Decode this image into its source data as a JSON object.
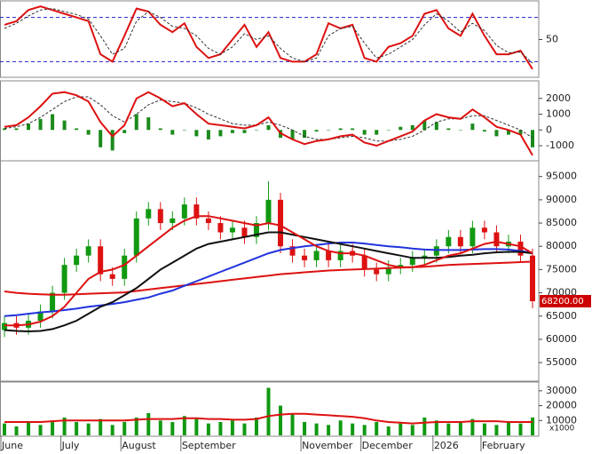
{
  "chart_data": [
    {
      "type": "line",
      "ylim": [
        0,
        100
      ],
      "yticks": [
        50
      ],
      "levels": [
        20,
        80
      ],
      "level_color": "#2222cc",
      "series": [
        {
          "color": "#dd1111",
          "width": 2,
          "values": [
            70,
            75,
            90,
            95,
            90,
            85,
            80,
            75,
            30,
            20,
            55,
            92,
            88,
            70,
            60,
            72,
            40,
            25,
            30,
            50,
            70,
            40,
            60,
            25,
            20,
            20,
            30,
            72,
            65,
            70,
            25,
            20,
            40,
            45,
            55,
            85,
            90,
            65,
            55,
            85,
            55,
            30,
            30,
            35,
            10
          ]
        },
        {
          "color": "#333333",
          "width": 1,
          "dash": true,
          "values": [
            65,
            72,
            82,
            90,
            92,
            88,
            84,
            78,
            55,
            30,
            38,
            75,
            88,
            80,
            68,
            65,
            55,
            38,
            30,
            40,
            58,
            50,
            55,
            38,
            25,
            20,
            25,
            55,
            65,
            68,
            45,
            25,
            30,
            40,
            50,
            70,
            85,
            75,
            60,
            72,
            62,
            42,
            32,
            33,
            18
          ]
        }
      ]
    },
    {
      "type": "line",
      "ylim": [
        -1900,
        3000
      ],
      "yticks": [
        2000,
        1000,
        0,
        -1000
      ],
      "series": [
        {
          "style": "bar",
          "color": "#1a8a1a",
          "values": [
            100,
            100,
            400,
            700,
            1000,
            600,
            100,
            -300,
            -1100,
            -1300,
            -200,
            1000,
            800,
            100,
            -300,
            0,
            -400,
            -600,
            -400,
            -200,
            -200,
            0,
            300,
            -500,
            -600,
            -500,
            -100,
            0,
            100,
            100,
            -300,
            -300,
            0,
            200,
            300,
            600,
            500,
            100,
            0,
            400,
            -100,
            -400,
            -300,
            -300,
            -1100
          ]
        },
        {
          "color": "#333333",
          "width": 1,
          "dash": true,
          "values": [
            100,
            200,
            400,
            800,
            1300,
            1800,
            2100,
            2100,
            1600,
            900,
            500,
            1000,
            1600,
            1900,
            1800,
            1700,
            1400,
            1000,
            700,
            400,
            300,
            300,
            500,
            300,
            0,
            -400,
            -600,
            -600,
            -500,
            -400,
            -500,
            -700,
            -700,
            -600,
            -400,
            0,
            500,
            700,
            700,
            900,
            900,
            600,
            300,
            0,
            -500
          ]
        },
        {
          "color": "#dd1111",
          "width": 2,
          "values": [
            200,
            300,
            800,
            1500,
            2300,
            2400,
            2200,
            1800,
            500,
            -400,
            300,
            2000,
            2400,
            2000,
            1500,
            1700,
            1000,
            400,
            300,
            200,
            100,
            300,
            800,
            -200,
            -600,
            -900,
            -700,
            -600,
            -400,
            -300,
            -800,
            -1000,
            -700,
            -400,
            -100,
            600,
            1000,
            800,
            700,
            1300,
            800,
            200,
            0,
            -300,
            -1600
          ]
        }
      ]
    },
    {
      "type": "candlestick",
      "ylim": [
        51200,
        98000
      ],
      "yticks": [
        95000,
        90000,
        85000,
        80000,
        75000,
        70000,
        65000,
        60000,
        55000
      ],
      "up_color": "#119911",
      "down_color": "#dd1111",
      "open": [
        62000,
        63500,
        62500,
        64000,
        66000,
        70000,
        76000,
        78000,
        80000,
        74000,
        73000,
        78000,
        86000,
        88000,
        85000,
        86000,
        89000,
        86000,
        85000,
        83000,
        84000,
        82000,
        85000,
        90000,
        80000,
        78000,
        77000,
        79000,
        77000,
        79000,
        78000,
        75000,
        74000,
        75500,
        76000,
        77500,
        78000,
        80000,
        82000,
        80000,
        84000,
        83000,
        80000,
        81000,
        78000
      ],
      "high": [
        65000,
        65000,
        65500,
        67500,
        71500,
        77500,
        79500,
        81500,
        81500,
        75500,
        79500,
        87500,
        89500,
        89500,
        87500,
        90500,
        90500,
        87500,
        86500,
        85500,
        85500,
        86500,
        94000,
        91500,
        81500,
        79500,
        80500,
        80500,
        80500,
        80500,
        79500,
        76500,
        77000,
        77500,
        79000,
        79500,
        81500,
        83500,
        83500,
        85500,
        85500,
        84500,
        82500,
        82500,
        79500
      ],
      "low": [
        60500,
        61000,
        61000,
        62500,
        64500,
        68500,
        74500,
        76500,
        72500,
        71500,
        71500,
        76500,
        84500,
        83500,
        83500,
        84500,
        84500,
        83500,
        81500,
        81500,
        80500,
        80500,
        83500,
        78500,
        76500,
        75500,
        75500,
        75500,
        75500,
        76500,
        73500,
        72500,
        72500,
        74000,
        74500,
        76000,
        76500,
        78500,
        78500,
        78500,
        81500,
        78500,
        78500,
        76500,
        66700
      ],
      "close": [
        63500,
        62500,
        64000,
        66000,
        70000,
        76000,
        78000,
        80000,
        74000,
        73000,
        78000,
        86000,
        88000,
        85000,
        86000,
        89000,
        86000,
        85000,
        83000,
        84000,
        82000,
        85000,
        90000,
        80000,
        78000,
        77000,
        79000,
        77000,
        79000,
        78000,
        75000,
        74000,
        75500,
        76000,
        77500,
        78000,
        80000,
        82000,
        80000,
        84000,
        83000,
        80000,
        81000,
        78000,
        68200
      ],
      "series": [
        {
          "color": "#dd1111",
          "width": 2,
          "values": [
            70300,
            70000,
            69800,
            69700,
            69600,
            69600,
            69700,
            69800,
            69900,
            70000,
            70100,
            70400,
            70700,
            71000,
            71300,
            71600,
            71900,
            72200,
            72500,
            72800,
            73100,
            73400,
            73700,
            74000,
            74200,
            74400,
            74600,
            74800,
            74900,
            75000,
            75100,
            75200,
            75300,
            75400,
            75500,
            75600,
            75800,
            76000,
            76100,
            76200,
            76300,
            76400,
            76500,
            76600,
            76700
          ]
        },
        {
          "color": "#2233dd",
          "width": 2,
          "values": [
            65000,
            65200,
            65500,
            65800,
            66000,
            66300,
            66600,
            67000,
            67300,
            67600,
            68000,
            68500,
            69000,
            69800,
            70500,
            71500,
            72500,
            73500,
            74500,
            75500,
            76500,
            77500,
            78500,
            79200,
            79600,
            80000,
            80300,
            80600,
            80800,
            80800,
            80600,
            80300,
            80000,
            79800,
            79500,
            79300,
            79200,
            79200,
            79200,
            79300,
            79400,
            79400,
            79300,
            79000,
            78600
          ]
        },
        {
          "color": "#111111",
          "width": 2,
          "values": [
            62000,
            61800,
            61700,
            61800,
            62200,
            63000,
            64000,
            65500,
            67000,
            68000,
            69500,
            71000,
            73000,
            75000,
            76500,
            78000,
            79500,
            80500,
            81000,
            81500,
            82000,
            82500,
            83000,
            83000,
            82500,
            82000,
            81500,
            81000,
            80500,
            80000,
            79500,
            79000,
            78500,
            78000,
            77500,
            77500,
            77500,
            77700,
            78000,
            78200,
            78500,
            78700,
            78800,
            78800,
            78500
          ]
        },
        {
          "color": "#dd1111",
          "width": 2,
          "values": [
            63000,
            63000,
            63200,
            63800,
            65000,
            67000,
            70000,
            73000,
            74500,
            75000,
            76000,
            78000,
            80000,
            82000,
            84000,
            85500,
            86500,
            86500,
            86000,
            85500,
            85000,
            84500,
            85000,
            84500,
            83000,
            81500,
            80000,
            79000,
            78500,
            78500,
            78000,
            77000,
            76000,
            75500,
            75500,
            76000,
            77000,
            78000,
            78500,
            79500,
            80500,
            81000,
            80500,
            80000,
            78500
          ]
        }
      ],
      "last_price": {
        "value": 68200,
        "label": "68200.00"
      },
      "last_price_color": "#cc0000"
    },
    {
      "type": "line",
      "ylim": [
        0,
        34700
      ],
      "yticks": [
        30000,
        20000,
        10000
      ],
      "unit_label": "x1000",
      "categories": [
        "June",
        null,
        null,
        null,
        null,
        "July",
        null,
        null,
        null,
        null,
        "August",
        null,
        null,
        null,
        null,
        "September",
        null,
        null,
        null,
        null,
        null,
        null,
        null,
        null,
        null,
        "November",
        null,
        null,
        null,
        null,
        "December",
        null,
        null,
        null,
        null,
        null,
        "2026",
        null,
        null,
        null,
        "February",
        null,
        null,
        null,
        null
      ],
      "series": [
        {
          "style": "bar",
          "color": "#119911",
          "values": [
            8000,
            6000,
            9000,
            7000,
            10000,
            12000,
            9000,
            8000,
            11000,
            7000,
            9000,
            12000,
            15000,
            10000,
            9000,
            13000,
            11000,
            8000,
            9000,
            10000,
            8000,
            12000,
            32000,
            20000,
            14000,
            9000,
            8000,
            7000,
            10000,
            8000,
            7000,
            9000,
            6000,
            8000,
            7000,
            12000,
            10000,
            8000,
            9000,
            11000,
            8000,
            7000,
            9000,
            8000,
            12000
          ]
        },
        {
          "color": "#dd1111",
          "width": 2,
          "values": [
            9000,
            9000,
            9000,
            9000,
            9500,
            10000,
            10000,
            10000,
            10000,
            10000,
            10000,
            10500,
            11000,
            11000,
            11000,
            11500,
            11500,
            11000,
            11000,
            10500,
            10500,
            11000,
            13000,
            14000,
            14500,
            14500,
            14000,
            13500,
            13000,
            12500,
            11500,
            10000,
            9000,
            8500,
            8000,
            8500,
            9000,
            9000,
            9000,
            9500,
            9500,
            9500,
            9000,
            9000,
            9000
          ]
        }
      ]
    }
  ]
}
